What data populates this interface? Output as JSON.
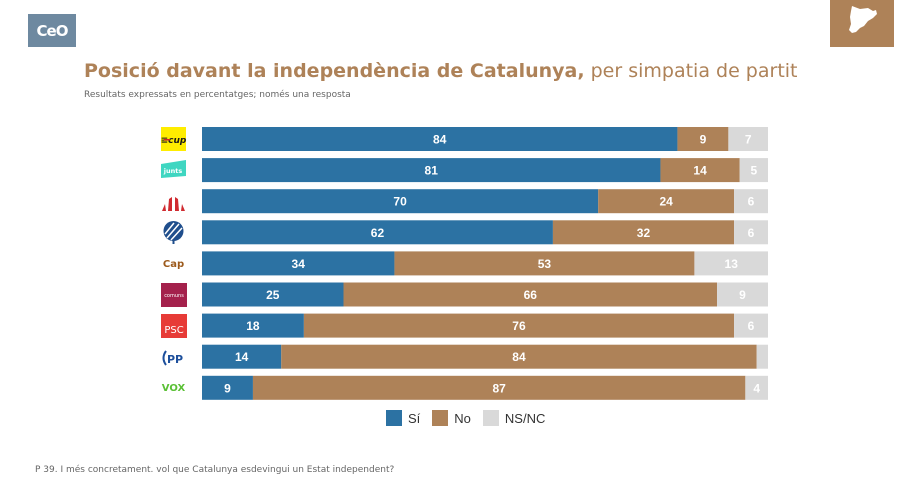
{
  "header": {
    "org_logo_text": "CeO",
    "org_logo_icon": "ceo-logo-icon",
    "region_icon": "catalonia-map-icon",
    "title_bold": "Posició davant la independència de Catalunya,",
    "title_light": " per simpatia de partit",
    "subtitle": "Resultats expressats en percentatges; només una resposta"
  },
  "footnote": "P 39. I més concretament. vol que Catalunya esdevingui un Estat independent?",
  "colors": {
    "si": "#2c72a3",
    "no": "#ae8258",
    "nsnc": "#d9d9d9",
    "title": "#ae8258"
  },
  "parties": [
    {
      "name": "CUP",
      "logo_text": "≡cup",
      "icon": "cup-logo-icon"
    },
    {
      "name": "Junts",
      "logo_text": "junts",
      "icon": "junts-logo-icon"
    },
    {
      "name": "ERC",
      "logo_text": "",
      "icon": "erc-logo-icon"
    },
    {
      "name": "Alhora",
      "logo_text": "",
      "icon": "tree-logo-icon"
    },
    {
      "name": "Cap",
      "logo_text": "Cap",
      "icon": "cap-label-icon"
    },
    {
      "name": "Comuns",
      "logo_text": "comuns",
      "icon": "comuns-logo-icon"
    },
    {
      "name": "PSC",
      "logo_text": "PSC",
      "icon": "psc-logo-icon"
    },
    {
      "name": "PP",
      "logo_text": "PP",
      "icon": "pp-logo-icon"
    },
    {
      "name": "Vox",
      "logo_text": "VOX",
      "icon": "vox-logo-icon"
    }
  ],
  "chart_data": {
    "type": "bar",
    "orientation": "horizontal",
    "stacked": true,
    "title": "Posició davant la independència de Catalunya, per simpatia de partit",
    "subtitle": "Resultats expressats en percentatges; només una resposta",
    "categories": [
      "CUP",
      "Junts",
      "ERC",
      "Alhora",
      "Cap",
      "Comuns",
      "PSC",
      "PP",
      "Vox"
    ],
    "series": [
      {
        "name": "Sí",
        "values": [
          84,
          81,
          70,
          62,
          34,
          25,
          18,
          14,
          9
        ]
      },
      {
        "name": "No",
        "values": [
          9,
          14,
          24,
          32,
          53,
          66,
          76,
          84,
          87
        ]
      },
      {
        "name": "NS/NC",
        "values": [
          7,
          5,
          6,
          6,
          13,
          9,
          6,
          2,
          4
        ]
      }
    ],
    "data_labels": [
      [
        "84",
        "9",
        "7"
      ],
      [
        "81",
        "14",
        "5"
      ],
      [
        "70",
        "24",
        "6"
      ],
      [
        "62",
        "32",
        "6"
      ],
      [
        "34",
        "53",
        "13"
      ],
      [
        "25",
        "66",
        "9"
      ],
      [
        "18",
        "76",
        "6"
      ],
      [
        "14",
        "84",
        ""
      ],
      [
        "9",
        "87",
        "4"
      ]
    ],
    "xlim": [
      0,
      100
    ],
    "xlabel": "",
    "ylabel": "",
    "grid": false,
    "legend": {
      "position": "bottom",
      "entries": [
        "Sí",
        "No",
        "NS/NC"
      ]
    }
  }
}
